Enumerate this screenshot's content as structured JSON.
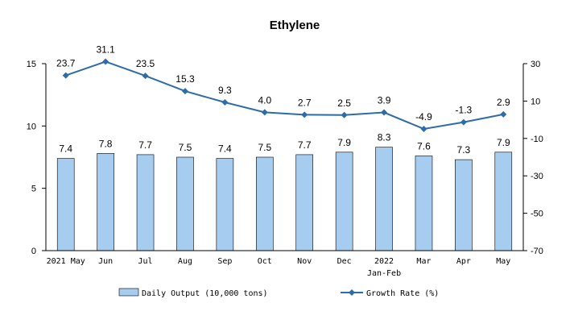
{
  "chart_data": {
    "type": "bar+line",
    "title": "Ethylene",
    "categories": [
      "2021 May",
      "Jun",
      "Jul",
      "Aug",
      "Sep",
      "Oct",
      "Nov",
      "Dec",
      "2022",
      "Mar",
      "Apr",
      "May"
    ],
    "category_sublabels": [
      "",
      "",
      "",
      "",
      "",
      "",
      "",
      "",
      "Jan-Feb",
      "",
      "",
      ""
    ],
    "series": [
      {
        "name": "Daily Output (10,000 tons)",
        "type": "bar",
        "axis": "left",
        "values": [
          7.4,
          7.8,
          7.7,
          7.5,
          7.4,
          7.5,
          7.7,
          7.9,
          8.3,
          7.6,
          7.3,
          7.9
        ],
        "color": "#a6ccf0"
      },
      {
        "name": "Growth Rate (%)",
        "type": "line",
        "axis": "right",
        "values": [
          23.7,
          31.1,
          23.5,
          15.3,
          9.3,
          4.0,
          2.7,
          2.5,
          3.9,
          -4.9,
          -1.3,
          2.9
        ],
        "labels": [
          "23.7",
          "31.1",
          "23.5",
          "15.3",
          "9.3",
          "4.0",
          "2.7",
          "2.5",
          "3.9",
          "-4.9",
          "-1.3",
          "2.9"
        ],
        "color": "#2e6ca8"
      }
    ],
    "y_left": {
      "min": 0,
      "max": 15,
      "ticks": [
        0,
        5,
        10,
        15
      ]
    },
    "y_right": {
      "min": -70,
      "max": 30,
      "ticks": [
        -70,
        -50,
        -30,
        -10,
        10,
        30
      ]
    },
    "legend_position": "bottom",
    "grid": false
  }
}
